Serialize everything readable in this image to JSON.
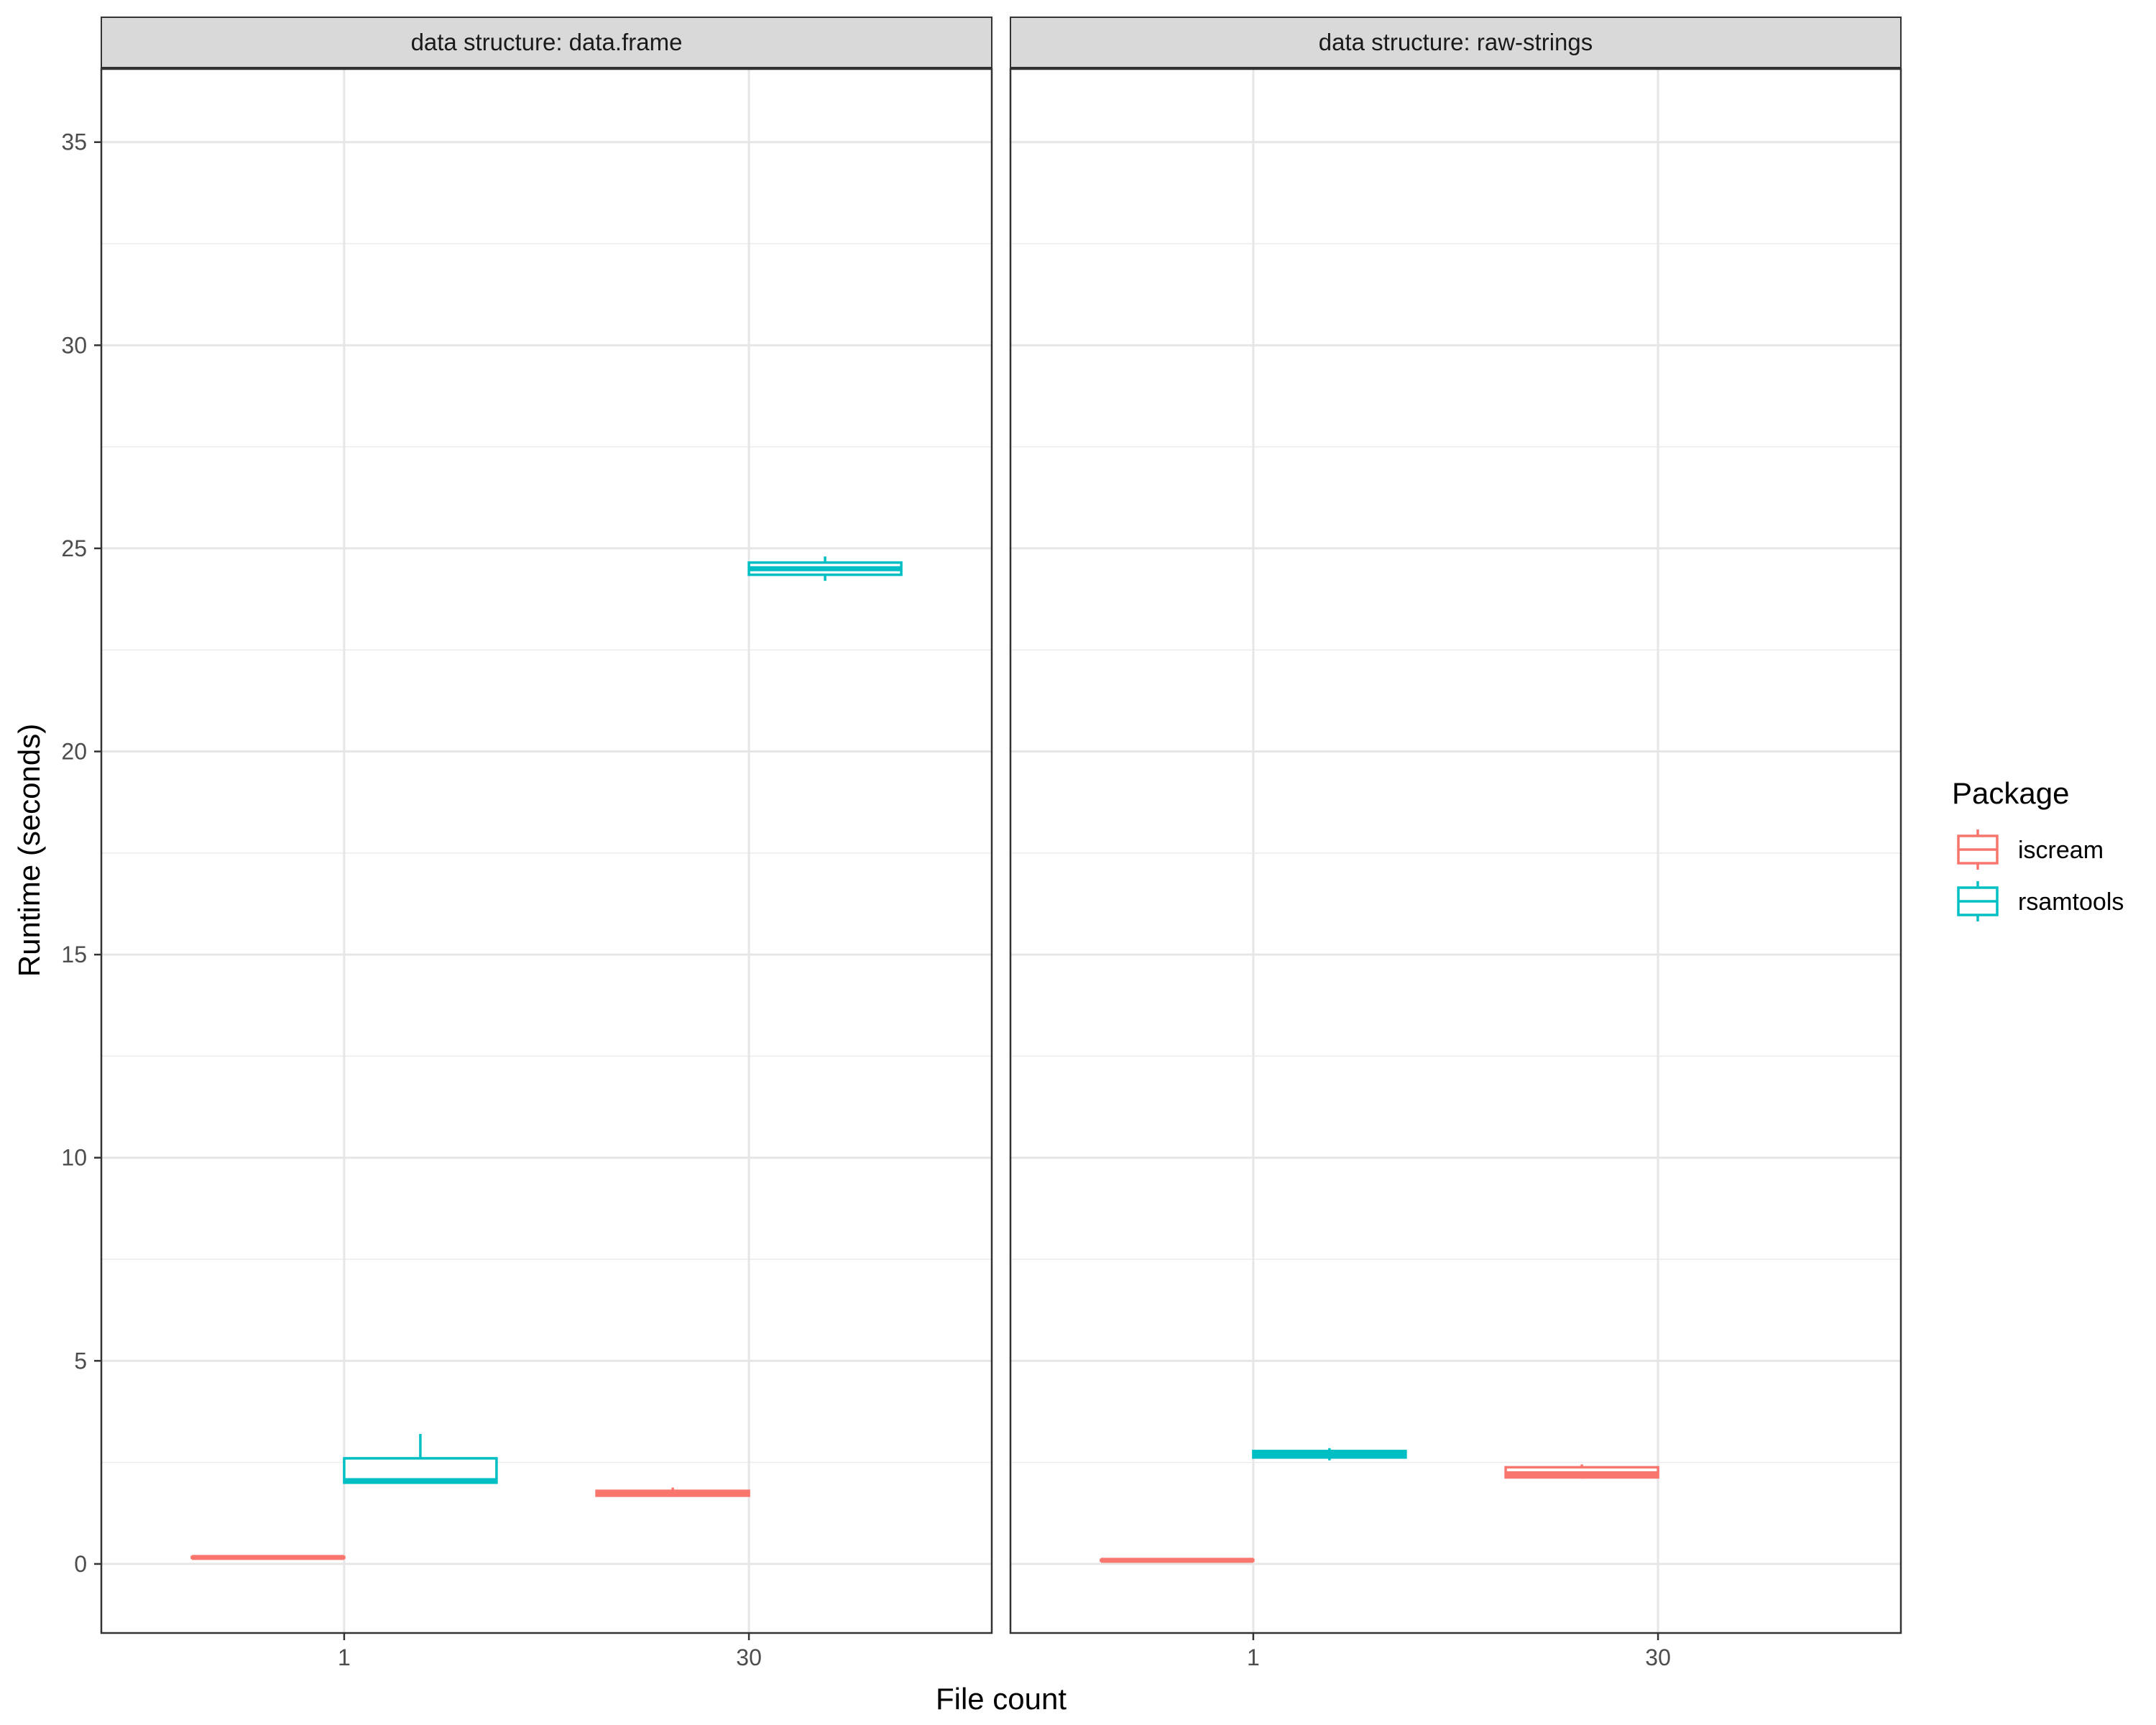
{
  "chart_data": {
    "type": "boxplot",
    "xlabel": "File count",
    "ylabel": "Runtime (seconds)",
    "ylim": [
      -1.7,
      36.8
    ],
    "yticks": [
      0,
      5,
      10,
      15,
      20,
      25,
      30,
      35
    ],
    "categories": [
      "1",
      "30"
    ],
    "legend": {
      "title": "Package",
      "placement": "right",
      "entries": [
        {
          "name": "iscream",
          "color": "#F8766D"
        },
        {
          "name": "rsamtools",
          "color": "#00BFC4"
        }
      ]
    },
    "grid": true,
    "panels": [
      {
        "strip": "data structure: data.frame",
        "boxes": [
          {
            "category": "1",
            "package": "iscream",
            "min": 0.14,
            "q1": 0.15,
            "median": 0.16,
            "q3": 0.17,
            "max": 0.18
          },
          {
            "category": "1",
            "package": "rsamtools",
            "min": 2.0,
            "q1": 2.0,
            "median": 2.05,
            "q3": 2.6,
            "max": 3.2
          },
          {
            "category": "30",
            "package": "iscream",
            "min": 1.65,
            "q1": 1.68,
            "median": 1.75,
            "q3": 1.8,
            "max": 1.88
          },
          {
            "category": "30",
            "package": "rsamtools",
            "min": 24.2,
            "q1": 24.35,
            "median": 24.5,
            "q3": 24.65,
            "max": 24.8
          }
        ]
      },
      {
        "strip": "data structure: raw-strings",
        "boxes": [
          {
            "category": "1",
            "package": "iscream",
            "min": 0.07,
            "q1": 0.08,
            "median": 0.09,
            "q3": 0.1,
            "max": 0.11
          },
          {
            "category": "1",
            "package": "rsamtools",
            "min": 2.55,
            "q1": 2.62,
            "median": 2.7,
            "q3": 2.78,
            "max": 2.85
          },
          {
            "category": "30",
            "package": "iscream",
            "min": 2.1,
            "q1": 2.13,
            "median": 2.22,
            "q3": 2.38,
            "max": 2.45
          }
        ]
      }
    ]
  }
}
